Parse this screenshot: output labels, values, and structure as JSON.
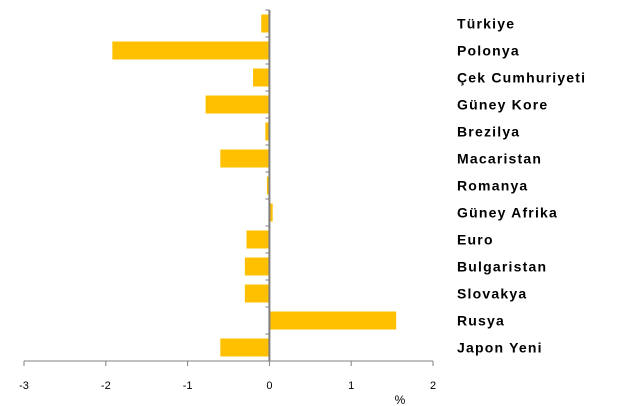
{
  "chart_data": {
    "type": "bar",
    "orientation": "horizontal",
    "categories": [
      "Türkiye",
      "Polonya",
      "Çek Cumhuriyeti",
      "Güney Kore",
      "Brezilya",
      "Macaristan",
      "Romanya",
      "Güney Afrika",
      "Euro",
      "Bulgaristan",
      "Slovakya",
      "Rusya",
      "Japon Yeni"
    ],
    "values": [
      -0.1,
      -1.92,
      -0.2,
      -0.78,
      -0.05,
      -0.6,
      -0.03,
      0.04,
      -0.28,
      -0.3,
      -0.3,
      1.55,
      -0.6
    ],
    "xlim": [
      -3,
      2
    ],
    "xticks": [
      "-3",
      "-2",
      "-1",
      "0",
      "1",
      "2"
    ],
    "xlabel": "%",
    "ylabel": "",
    "title": "",
    "grid": false,
    "legend": "none",
    "bar_color": "#FFC000",
    "axis_color": "#808080"
  }
}
